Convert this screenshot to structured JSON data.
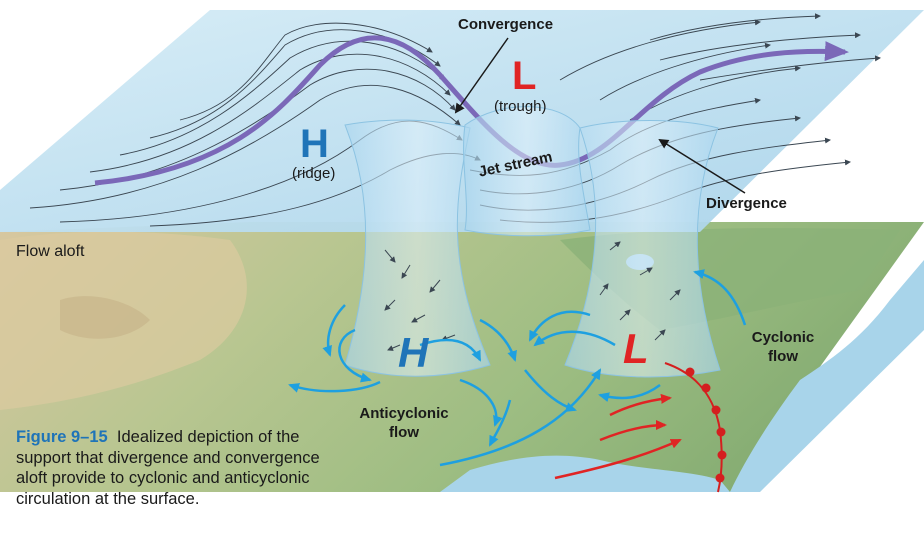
{
  "labels": {
    "convergence": "Convergence",
    "upper_low": "L",
    "trough": "(trough)",
    "upper_high": "H",
    "ridge": "(ridge)",
    "jet_stream": "Jet stream",
    "divergence": "Divergence",
    "flow_aloft": "Flow aloft",
    "surface_high": "H",
    "surface_low": "L",
    "anticyclonic_flow": "Anticyclonic flow",
    "cyclonic_flow": "Cyclonic flow"
  },
  "caption": {
    "figure_number": "Figure 9–15",
    "text": "Idealized depiction of the support that divergence and convergence aloft provide to cyclonic and anticyclonic circulation at the surface."
  },
  "colors": {
    "sky_plane": "#bfe0f0",
    "jet_stream": "#7b68b8",
    "high_label": "#1f74b8",
    "low_label": "#e02424",
    "flow_arrows": "#1ea0e0",
    "warm_arrows": "#e02424",
    "front": "#d41f1f",
    "land": "#a8c08a",
    "water": "#a8d4ea"
  }
}
